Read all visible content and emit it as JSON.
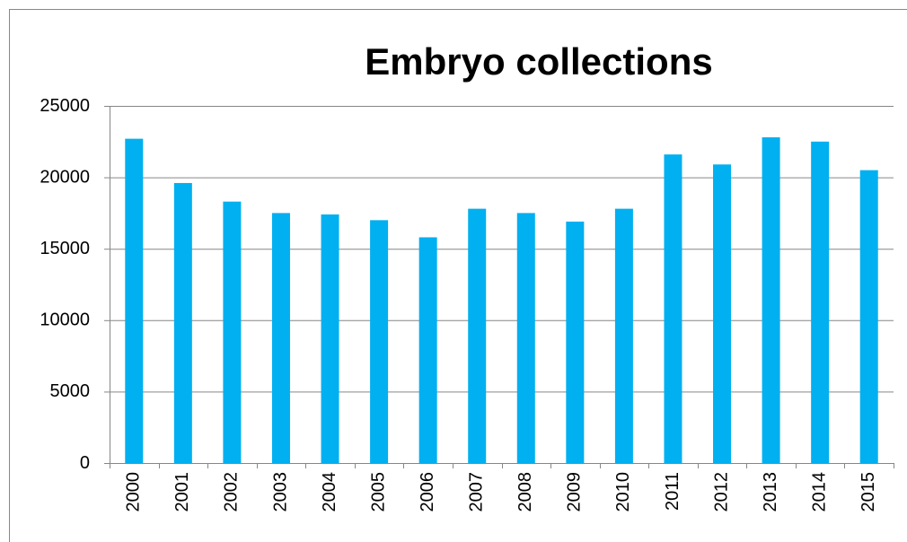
{
  "chart_data": {
    "type": "bar",
    "title": "Embryo collections",
    "categories": [
      "2000",
      "2001",
      "2002",
      "2003",
      "2004",
      "2005",
      "2006",
      "2007",
      "2008",
      "2009",
      "2010",
      "2011",
      "2012",
      "2013",
      "2014",
      "2015"
    ],
    "values": [
      22700,
      19600,
      18300,
      17500,
      17400,
      17000,
      15800,
      17800,
      17500,
      16900,
      17800,
      21600,
      20900,
      22800,
      22500,
      20500
    ],
    "color": "#00b0f0",
    "ylim": [
      0,
      25000
    ],
    "yticks": [
      0,
      5000,
      10000,
      15000,
      20000,
      25000
    ],
    "grid": true
  }
}
